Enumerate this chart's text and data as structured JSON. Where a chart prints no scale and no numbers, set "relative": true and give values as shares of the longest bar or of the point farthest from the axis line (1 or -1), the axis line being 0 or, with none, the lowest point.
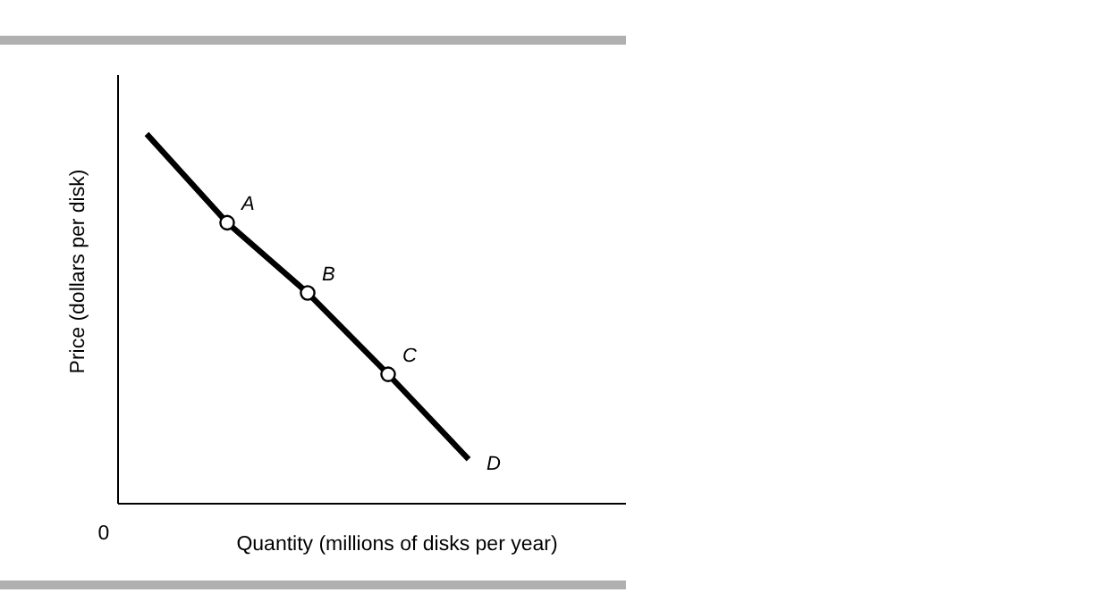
{
  "chart_data": {
    "type": "line",
    "xlabel": "Quantity (millions of disks per year)",
    "ylabel": "Price (dollars per disk)",
    "relative": true,
    "categories": [
      null,
      null,
      null,
      null,
      null
    ],
    "series": [
      {
        "color": "#000000",
        "values": [
          1,
          0.76,
          0.57,
          0.35,
          0.12
        ]
      }
    ],
    "annotations": [
      "0",
      "A",
      "B",
      "C",
      "D"
    ]
  }
}
